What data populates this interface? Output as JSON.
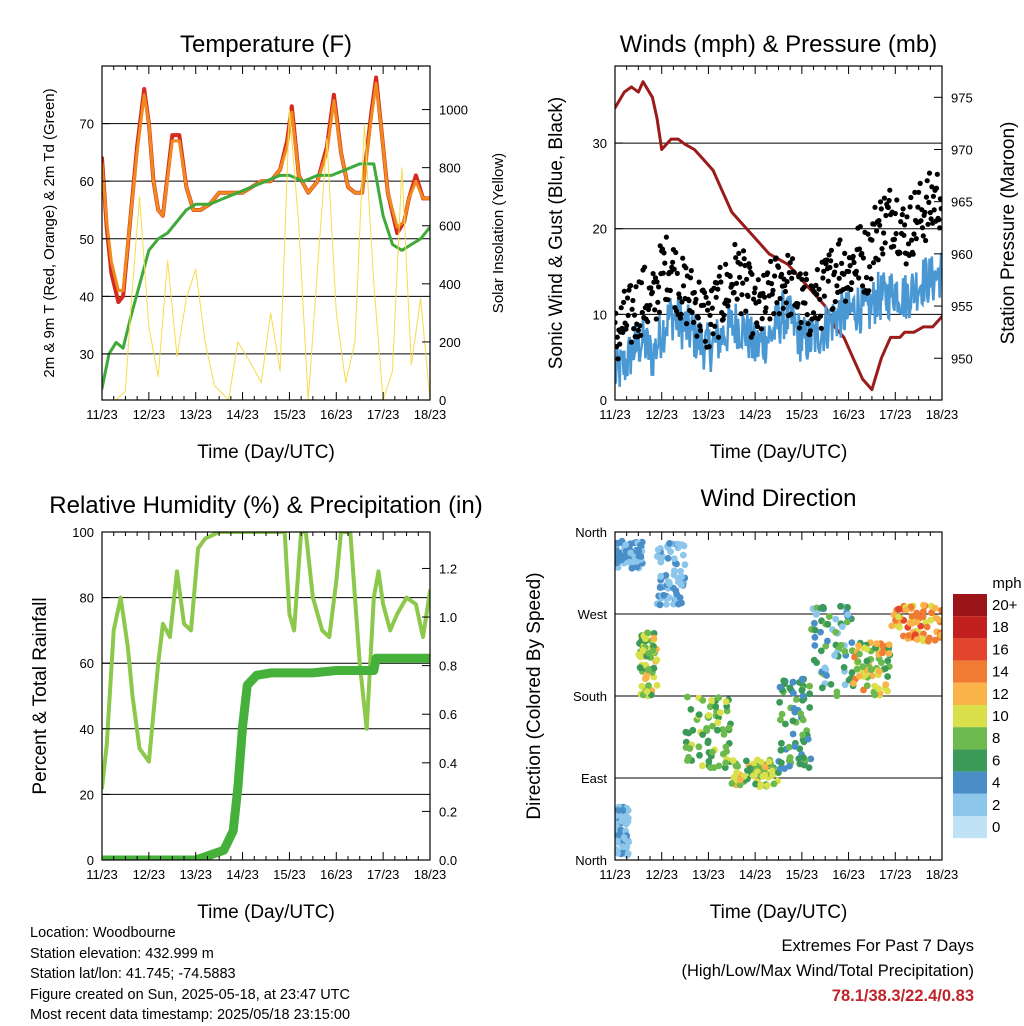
{
  "x_tick_labels": [
    "11/23",
    "12/23",
    "13/23",
    "14/23",
    "15/23",
    "16/23",
    "17/23",
    "18/23"
  ],
  "footer": {
    "location": "Location: Woodbourne",
    "elevation": "Station elevation: 432.999 m",
    "latlon": "Station lat/lon: 41.745; -74.5883",
    "created": "Figure created on Sun, 2025-05-18, at 23:47 UTC",
    "recent": "Most recent data timestamp: 2025/05/18 23:15:00",
    "extremes_title": "Extremes For Past 7 Days",
    "extremes_subtitle": "(High/Low/Max Wind/Total Precipitation)",
    "extremes_values": "78.1/38.3/22.4/0.83"
  },
  "colors": {
    "temp_2m": "#d42a1f",
    "temp_9m": "#f08a1c",
    "dewpoint": "#3faa3a",
    "solar": "#f5dc4c",
    "wind": "#4a98d3",
    "gust": "#000000",
    "pressure": "#9b1b1b",
    "rh": "#8cc84b",
    "precip": "#45b03a",
    "extremes": "#c0242b"
  },
  "chart_data": [
    {
      "type": "line",
      "title": "Temperature (F)",
      "xlabel": "Time (Day/UTC)",
      "ylabel": "2m & 9m T (Red, Orange) & 2m Td (Green)",
      "ylabel_right": "Solar Insolation (Yellow)",
      "xlim": [
        0,
        7
      ],
      "ylim": [
        22,
        80
      ],
      "ylim_right": [
        0,
        1150
      ],
      "yticks": [
        30,
        40,
        50,
        60,
        70
      ],
      "yticks_right": [
        0,
        200,
        400,
        600,
        800,
        1000
      ],
      "grid": "horizontal",
      "series": [
        {
          "color_key": "temp_2m",
          "axis": "left",
          "x": [
            0,
            0.1,
            0.2,
            0.35,
            0.45,
            0.6,
            0.75,
            0.9,
            1.0,
            1.1,
            1.2,
            1.3,
            1.5,
            1.65,
            1.8,
            1.95,
            2.1,
            2.3,
            2.5,
            2.7,
            2.9,
            3.0,
            3.2,
            3.4,
            3.6,
            3.8,
            3.95,
            4.05,
            4.2,
            4.4,
            4.6,
            4.8,
            4.95,
            5.1,
            5.25,
            5.4,
            5.55,
            5.75,
            5.85,
            5.95,
            6.1,
            6.3,
            6.45,
            6.55,
            6.7,
            6.85,
            7.0
          ],
          "y": [
            64,
            52,
            44,
            39,
            40,
            53,
            66,
            76,
            70,
            60,
            55,
            54,
            68,
            68,
            59,
            55,
            55,
            56,
            58,
            58,
            58,
            58,
            59,
            60,
            60,
            62,
            67,
            73,
            61,
            58,
            60,
            66,
            75,
            65,
            59,
            58,
            58,
            72,
            78,
            70,
            58,
            51,
            53,
            57,
            61,
            57,
            57
          ]
        },
        {
          "color_key": "temp_9m",
          "axis": "left",
          "x": [
            0,
            0.1,
            0.2,
            0.35,
            0.45,
            0.6,
            0.75,
            0.9,
            1.0,
            1.1,
            1.2,
            1.3,
            1.5,
            1.65,
            1.8,
            1.95,
            2.1,
            2.3,
            2.5,
            2.7,
            2.9,
            3.0,
            3.2,
            3.4,
            3.6,
            3.8,
            3.95,
            4.05,
            4.2,
            4.4,
            4.6,
            4.8,
            4.95,
            5.1,
            5.25,
            5.4,
            5.55,
            5.75,
            5.85,
            5.95,
            6.1,
            6.3,
            6.45,
            6.55,
            6.7,
            6.85,
            7.0
          ],
          "y": [
            63,
            53,
            46,
            41,
            41,
            53,
            65,
            75,
            70,
            60,
            55,
            54,
            67,
            67,
            59,
            55,
            55,
            56,
            58,
            58,
            58,
            58,
            59,
            60,
            60,
            62,
            66,
            72,
            61,
            58,
            60,
            65,
            74,
            65,
            59,
            58,
            58,
            71,
            77,
            70,
            58,
            52,
            53,
            57,
            60,
            57,
            57
          ]
        },
        {
          "color_key": "dewpoint",
          "axis": "left",
          "x": [
            0,
            0.15,
            0.3,
            0.45,
            0.6,
            0.8,
            1.0,
            1.2,
            1.4,
            1.6,
            1.8,
            2.0,
            2.3,
            2.6,
            2.9,
            3.2,
            3.5,
            3.8,
            4.0,
            4.3,
            4.6,
            4.9,
            5.2,
            5.5,
            5.8,
            6.0,
            6.2,
            6.4,
            6.6,
            6.8,
            7.0
          ],
          "y": [
            24,
            30,
            32,
            31,
            36,
            42,
            48,
            50,
            51,
            53,
            55,
            56,
            56,
            57,
            58,
            59,
            60,
            61,
            61,
            60,
            61,
            61,
            62,
            63,
            63,
            54,
            49,
            48,
            49,
            50,
            52
          ]
        },
        {
          "color_key": "solar",
          "axis": "right",
          "x": [
            0,
            0.3,
            0.5,
            0.6,
            0.8,
            1.0,
            1.2,
            1.4,
            1.6,
            1.8,
            2.0,
            2.2,
            2.4,
            2.7,
            2.9,
            3.2,
            3.4,
            3.6,
            3.8,
            4.0,
            4.2,
            4.4,
            4.6,
            4.8,
            5.0,
            5.2,
            5.4,
            5.6,
            5.8,
            6.0,
            6.2,
            6.4,
            6.6,
            6.8,
            7.0
          ],
          "y": [
            0,
            0,
            30,
            280,
            700,
            250,
            80,
            480,
            150,
            350,
            450,
            200,
            50,
            0,
            200,
            120,
            60,
            300,
            100,
            1000,
            600,
            0,
            450,
            900,
            300,
            60,
            200,
            950,
            400,
            0,
            100,
            800,
            120,
            350,
            0
          ]
        }
      ]
    },
    {
      "type": "line",
      "title": "Winds (mph) & Pressure (mb)",
      "xlabel": "Time (Day/UTC)",
      "ylabel": "Sonic Wind & Gust (Blue, Black)",
      "ylabel_right": "Station Pressure (Maroon)",
      "xlim": [
        0,
        7
      ],
      "ylim": [
        0,
        39
      ],
      "ylim_right": [
        946,
        978
      ],
      "yticks": [
        0,
        10,
        20,
        30
      ],
      "yticks_right": [
        950,
        955,
        960,
        965,
        970,
        975
      ],
      "grid": "horizontal",
      "series": [
        {
          "color_key": "pressure",
          "axis": "right",
          "x": [
            0,
            0.2,
            0.35,
            0.5,
            0.6,
            0.8,
            0.9,
            1.0,
            1.2,
            1.35,
            1.5,
            1.7,
            1.9,
            2.1,
            2.3,
            2.5,
            2.7,
            2.9,
            3.1,
            3.3,
            3.5,
            3.7,
            3.9,
            4.1,
            4.3,
            4.5,
            4.7,
            4.9,
            5.1,
            5.3,
            5.5,
            5.7,
            5.8,
            5.9,
            6.0,
            6.1,
            6.2,
            6.4,
            6.6,
            6.8,
            7.0
          ],
          "y": [
            974,
            975.5,
            976,
            975.5,
            976.5,
            975,
            973,
            970,
            971,
            971,
            970.5,
            970,
            969,
            968,
            966,
            964,
            963,
            962,
            961,
            960,
            959.5,
            959,
            958,
            957,
            956,
            955,
            953,
            952,
            950,
            948,
            947,
            950,
            951,
            952,
            952,
            952,
            952.5,
            952.5,
            953,
            953,
            954
          ]
        },
        {
          "color_key": "wind",
          "axis": "left",
          "x": [
            0,
            0.2,
            0.4,
            0.6,
            0.8,
            1.0,
            1.2,
            1.4,
            1.6,
            1.8,
            2.0,
            2.2,
            2.4,
            2.6,
            2.8,
            3.0,
            3.2,
            3.4,
            3.6,
            3.8,
            4.0,
            4.2,
            4.4,
            4.6,
            4.8,
            5.0,
            5.2,
            5.4,
            5.6,
            5.8,
            6.0,
            6.2,
            6.4,
            6.6,
            6.8,
            7.0
          ],
          "y": [
            3,
            4,
            6,
            7,
            5,
            8,
            10,
            9,
            8,
            7,
            6,
            7,
            8,
            9,
            8,
            6,
            7,
            8,
            10,
            9,
            7,
            7,
            8,
            9,
            10,
            10,
            11,
            10,
            12,
            12,
            13,
            12,
            13,
            14,
            14,
            15
          ]
        },
        {
          "color_key": "gust",
          "axis": "left",
          "x": [
            0,
            0.2,
            0.4,
            0.6,
            0.8,
            1.0,
            1.2,
            1.4,
            1.6,
            1.8,
            2.0,
            2.2,
            2.4,
            2.6,
            2.8,
            3.0,
            3.2,
            3.4,
            3.6,
            3.8,
            4.0,
            4.2,
            4.4,
            4.6,
            4.8,
            5.0,
            5.2,
            5.4,
            5.6,
            5.8,
            6.0,
            6.2,
            6.4,
            6.6,
            6.8,
            7.0
          ],
          "y": [
            7,
            9,
            10,
            12,
            11,
            15,
            16,
            13,
            12,
            11,
            9,
            11,
            13,
            15,
            13,
            10,
            11,
            13,
            14,
            13,
            11,
            11,
            12,
            14,
            16,
            15,
            17,
            16,
            20,
            21,
            22,
            19,
            21,
            22,
            23,
            24
          ]
        }
      ]
    },
    {
      "type": "line",
      "title": "Relative Humidity (%) & Precipitation (in)",
      "xlabel": "Time (Day/UTC)",
      "ylabel": "Percent & Total Rainfall",
      "xlim": [
        0,
        7
      ],
      "ylim": [
        0,
        100
      ],
      "ylim_right": [
        0,
        1.35
      ],
      "yticks": [
        0,
        20,
        40,
        60,
        80,
        100
      ],
      "yticks_right": [
        0.0,
        0.2,
        0.4,
        0.6,
        0.8,
        1.0,
        1.2
      ],
      "grid": "horizontal",
      "series": [
        {
          "color_key": "rh",
          "axis": "left",
          "x": [
            0,
            0.1,
            0.25,
            0.4,
            0.55,
            0.65,
            0.8,
            1.0,
            1.2,
            1.3,
            1.45,
            1.6,
            1.75,
            1.9,
            2.05,
            2.2,
            2.35,
            2.5,
            2.7,
            2.9,
            3.1,
            3.3,
            3.5,
            3.7,
            3.9,
            4.0,
            4.1,
            4.25,
            4.35,
            4.5,
            4.7,
            4.85,
            5.0,
            5.1,
            5.3,
            5.5,
            5.65,
            5.8,
            5.9,
            6.0,
            6.15,
            6.3,
            6.5,
            6.7,
            6.85,
            7.0
          ],
          "y": [
            22,
            35,
            70,
            80,
            65,
            50,
            34,
            30,
            60,
            72,
            68,
            88,
            72,
            70,
            95,
            98,
            99,
            100,
            100,
            100,
            100,
            100,
            100,
            100,
            100,
            75,
            70,
            100,
            100,
            80,
            70,
            68,
            85,
            100,
            100,
            60,
            40,
            80,
            88,
            78,
            70,
            75,
            80,
            78,
            68,
            82
          ]
        },
        {
          "color_key": "precip",
          "axis": "right",
          "x": [
            0,
            1.0,
            2.0,
            2.3,
            2.6,
            2.8,
            2.9,
            3.0,
            3.1,
            3.3,
            3.6,
            4.0,
            4.5,
            5.0,
            5.5,
            5.8,
            5.85,
            6.0,
            6.5,
            7.0
          ],
          "y": [
            0,
            0,
            0,
            0.02,
            0.04,
            0.12,
            0.3,
            0.55,
            0.72,
            0.76,
            0.77,
            0.77,
            0.77,
            0.78,
            0.78,
            0.78,
            0.83,
            0.83,
            0.83,
            0.83
          ]
        }
      ]
    },
    {
      "type": "scatter",
      "title": "Wind Direction",
      "xlabel": "Time (Day/UTC)",
      "ylabel": "Direction (Colored By Speed)",
      "xlim": [
        0,
        7
      ],
      "ylim": [
        0,
        360
      ],
      "yticks": [
        0,
        90,
        180,
        270,
        360
      ],
      "ytick_labels": [
        "North",
        "East",
        "South",
        "West",
        "North"
      ],
      "grid": "horizontal",
      "legend_title": "mph",
      "legend": [
        "0",
        "2",
        "4",
        "6",
        "8",
        "10",
        "12",
        "14",
        "16",
        "18",
        "20+"
      ],
      "legend_colors": [
        "#bfe3f5",
        "#8cc6ea",
        "#4a8ec8",
        "#3b9a57",
        "#6cb94d",
        "#d9e04a",
        "#f9b348",
        "#f07c34",
        "#e2452b",
        "#c2201f",
        "#9b1418"
      ],
      "clusters": [
        {
          "x_range": [
            0,
            0.6
          ],
          "dir_range": [
            320,
            350
          ],
          "speed_range": [
            2,
            5
          ]
        },
        {
          "x_range": [
            0,
            0.3
          ],
          "dir_range": [
            5,
            60
          ],
          "speed_range": [
            1,
            4
          ]
        },
        {
          "x_range": [
            0.5,
            0.9
          ],
          "dir_range": [
            180,
            250
          ],
          "speed_range": [
            5,
            12
          ]
        },
        {
          "x_range": [
            0.9,
            1.5
          ],
          "dir_range": [
            280,
            350
          ],
          "speed_range": [
            1,
            5
          ]
        },
        {
          "x_range": [
            1.5,
            2.5
          ],
          "dir_range": [
            100,
            180
          ],
          "speed_range": [
            5,
            10
          ]
        },
        {
          "x_range": [
            2.5,
            3.5
          ],
          "dir_range": [
            80,
            110
          ],
          "speed_range": [
            6,
            12
          ]
        },
        {
          "x_range": [
            3.5,
            4.2
          ],
          "dir_range": [
            100,
            200
          ],
          "speed_range": [
            3,
            8
          ]
        },
        {
          "x_range": [
            4.2,
            5.1
          ],
          "dir_range": [
            180,
            280
          ],
          "speed_range": [
            2,
            8
          ]
        },
        {
          "x_range": [
            5.1,
            5.9
          ],
          "dir_range": [
            180,
            240
          ],
          "speed_range": [
            6,
            14
          ]
        },
        {
          "x_range": [
            5.9,
            7.0
          ],
          "dir_range": [
            240,
            280
          ],
          "speed_range": [
            10,
            16
          ]
        }
      ]
    }
  ]
}
